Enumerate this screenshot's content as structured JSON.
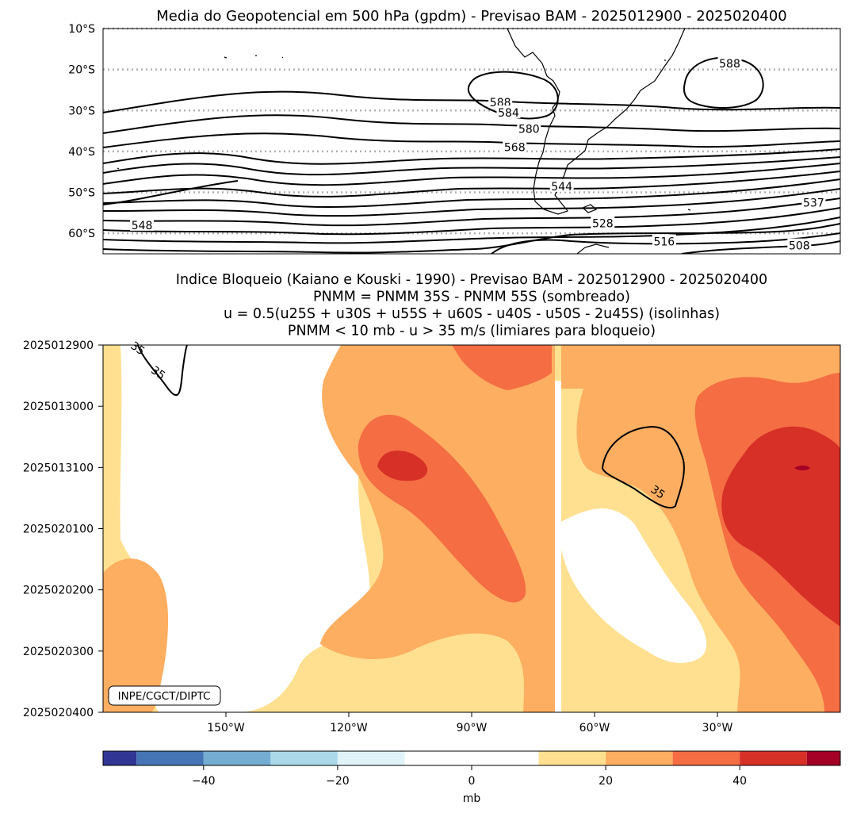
{
  "chart_data": [
    {
      "type": "contour",
      "title": "Media do Geopotencial em 500 hPa (gpdm) - Previsao BAM - 2025012900 - 2025020400",
      "y_ticks": [
        "10°S",
        "20°S",
        "30°S",
        "40°S",
        "50°S",
        "60°S"
      ],
      "y_tick_values": [
        -10,
        -20,
        -30,
        -40,
        -50,
        -60
      ],
      "lat_range": [
        -65,
        -10
      ],
      "lon_range": [
        -180,
        0
      ],
      "gridlines": "dotted latitude lines",
      "contour_labels": [
        {
          "text": "588",
          "lon": -83,
          "lat": -28
        },
        {
          "text": "584",
          "lon": -81,
          "lat": -30.5
        },
        {
          "text": "580",
          "lon": -76,
          "lat": -34.5
        },
        {
          "text": "568",
          "lon": -79.5,
          "lat": -39
        },
        {
          "text": "544",
          "lon": -68,
          "lat": -48.5
        },
        {
          "text": "548",
          "lon": -170.5,
          "lat": -58
        },
        {
          "text": "528",
          "lon": -58,
          "lat": -57.5
        },
        {
          "text": "516",
          "lon": -43,
          "lat": -62
        },
        {
          "text": "537",
          "lon": -6.5,
          "lat": -52.5
        },
        {
          "text": "508",
          "lon": -10,
          "lat": -63
        },
        {
          "text": "588",
          "lon": -27,
          "lat": -18.5
        }
      ]
    },
    {
      "type": "heatmap",
      "title_lines": [
        "Indice Bloqueio (Kaiano e Kouski - 1990) - Previsao BAM - 2025012900 - 2025020400",
        "PNMM = PNMM 35S - PNMM 55S (sombreado)",
        "u = 0.5(u25S + u30S + u55S + u60S - u40S - u50S - 2u45S) (isolinhas)",
        "PNMM < 10 mb - u > 35 m/s (limiares para bloqueio)"
      ],
      "y_ticks": [
        "2025012900",
        "2025013000",
        "2025013100",
        "2025020100",
        "2025020200",
        "2025020300",
        "2025020400"
      ],
      "x_ticks": [
        "150°W",
        "120°W",
        "90°W",
        "60°W",
        "30°W"
      ],
      "x_tick_values": [
        -150,
        -120,
        -90,
        -60,
        -30
      ],
      "lon_range": [
        -180,
        0
      ],
      "time_range_days": [
        0,
        6
      ],
      "contour_level": "35",
      "contour_labels": [
        {
          "text": "35",
          "lon": -166.5,
          "day": 0.45
        },
        {
          "text": "35",
          "lon": -171.5,
          "day": 0.05
        },
        {
          "text": "35",
          "lon": -44.5,
          "day": 2.4
        }
      ],
      "colorbar": {
        "label": "mb",
        "ticks": [
          "−40",
          "−20",
          "0",
          "20",
          "40"
        ],
        "tick_values": [
          -40,
          -20,
          0,
          20,
          40
        ],
        "range": [
          -55,
          55
        ],
        "levels": [
          -55,
          -50,
          -40,
          -30,
          -20,
          -10,
          10,
          20,
          30,
          40,
          50,
          55
        ],
        "colors": [
          "#313695",
          "#4575b4",
          "#74add1",
          "#abd9e9",
          "#e0f3f8",
          "#ffffff",
          "#fee090",
          "#fdae61",
          "#f46d43",
          "#d73027",
          "#a50026"
        ]
      }
    }
  ],
  "watermark": "INPE/CGCT/DIPTC"
}
